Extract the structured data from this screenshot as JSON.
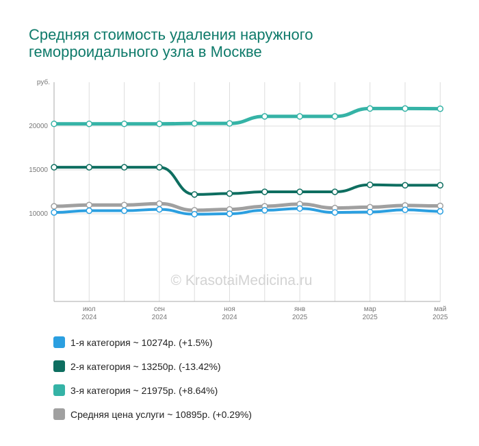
{
  "title_lines": [
    "Средняя стоимость удаления наружного",
    "геморроидального узла в Москве"
  ],
  "watermark": "© KrasotaiMedicina.ru",
  "colors": {
    "cat1": "#2b9fe0",
    "cat2": "#0e6e60",
    "cat3": "#35b3a6",
    "avg": "#a0a0a0",
    "grid": "#dddddd",
    "axis": "#aaaaaa",
    "tick_text": "#777777",
    "title": "#0e7a6a"
  },
  "legend": [
    {
      "color": "#2b9fe0",
      "label": "1-я категория ~ 10274р. (+1.5%)"
    },
    {
      "color": "#0e6e60",
      "label": "2-я категория ~ 13250р. (-13.42%)"
    },
    {
      "color": "#35b3a6",
      "label": "3-я категория ~ 21975р. (+8.64%)"
    },
    {
      "color": "#a0a0a0",
      "label": "Средняя цена услуги ~ 10895р. (+0.29%)"
    }
  ],
  "chart_data": {
    "type": "line",
    "ylabel": "руб.",
    "ylim": [
      0,
      25000
    ],
    "yticks": [
      10000,
      15000,
      20000
    ],
    "grid": true,
    "legend_position": "bottom",
    "x": [
      "2024-06",
      "2024-07",
      "2024-08",
      "2024-09",
      "2024-10",
      "2024-11",
      "2024-12",
      "2025-01",
      "2025-02",
      "2025-03",
      "2025-04",
      "2025-05"
    ],
    "xtick_labels": [
      {
        "index": 1,
        "month": "июл",
        "year": "2024"
      },
      {
        "index": 3,
        "month": "сен",
        "year": "2024"
      },
      {
        "index": 5,
        "month": "ноя",
        "year": "2024"
      },
      {
        "index": 7,
        "month": "янв",
        "year": "2025"
      },
      {
        "index": 9,
        "month": "мар",
        "year": "2025"
      },
      {
        "index": 11,
        "month": "май",
        "year": "2025"
      }
    ],
    "series": [
      {
        "key": "cat3",
        "width": 5,
        "values": [
          20250,
          20250,
          20250,
          20250,
          20300,
          20300,
          21100,
          21100,
          21100,
          22000,
          22000,
          21975
        ]
      },
      {
        "key": "cat2",
        "width": 4,
        "values": [
          15300,
          15300,
          15300,
          15300,
          12200,
          12300,
          12500,
          12500,
          12500,
          13300,
          13250,
          13250
        ]
      },
      {
        "key": "avg",
        "width": 5,
        "values": [
          10850,
          11000,
          11000,
          11150,
          10400,
          10500,
          10850,
          11100,
          10650,
          10750,
          10950,
          10895
        ]
      },
      {
        "key": "cat1",
        "width": 4,
        "values": [
          10150,
          10350,
          10350,
          10500,
          9950,
          10000,
          10400,
          10600,
          10150,
          10200,
          10450,
          10274
        ]
      }
    ]
  }
}
